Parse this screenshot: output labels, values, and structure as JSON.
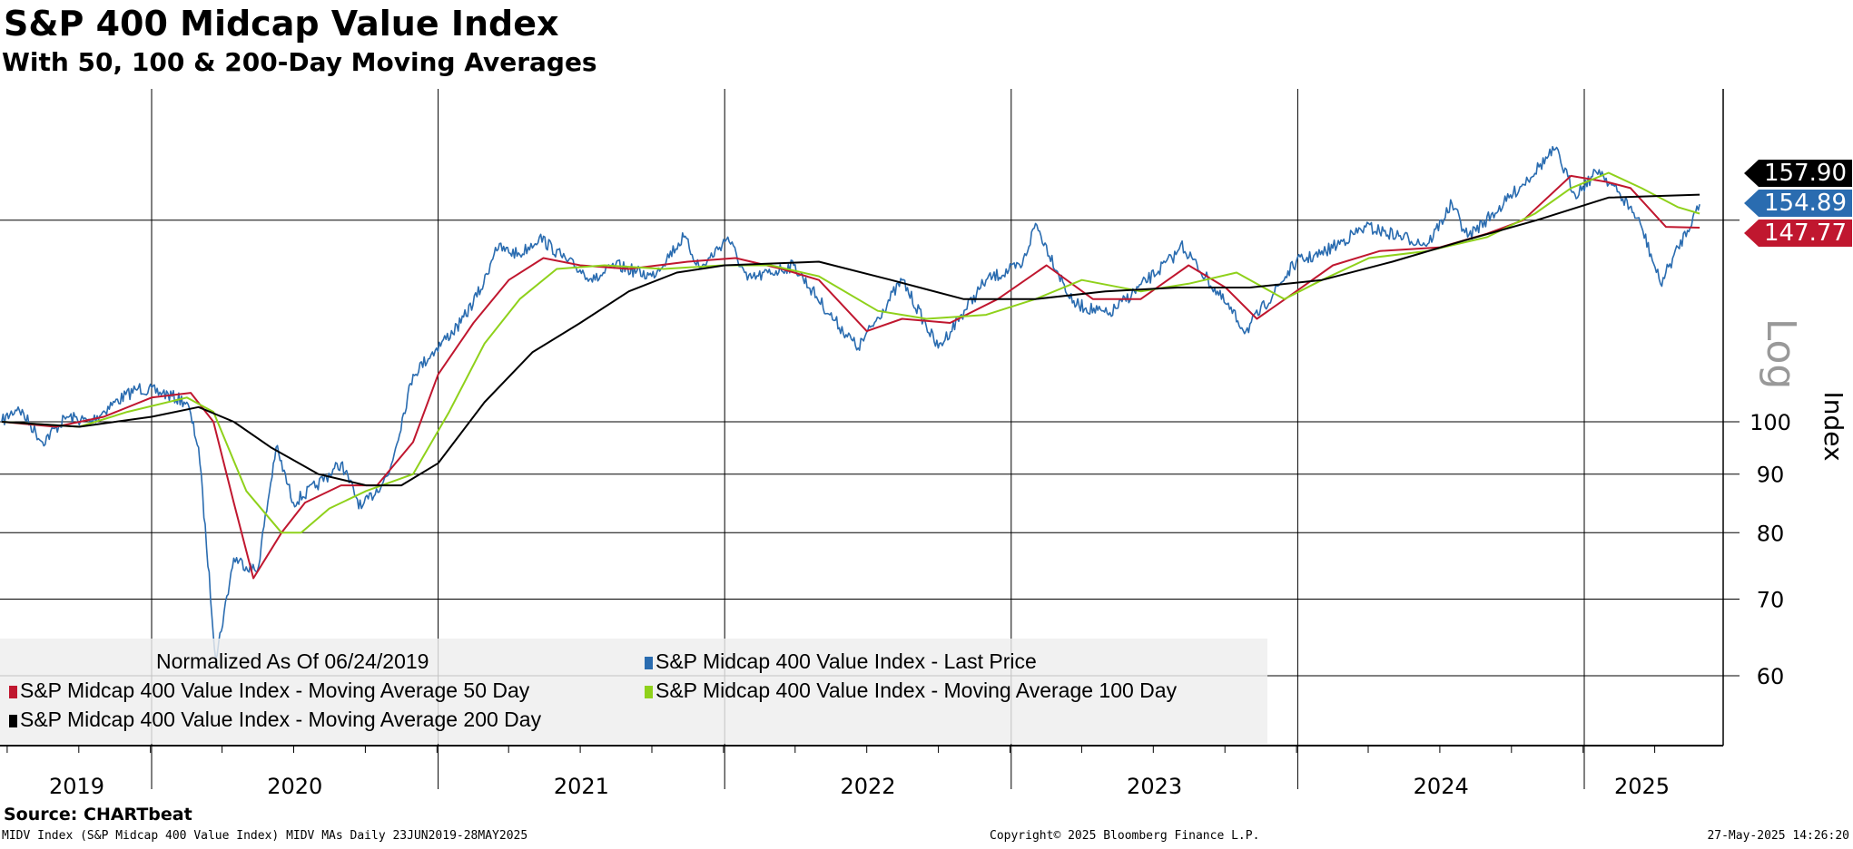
{
  "header": {
    "title": "S&P 400 Midcap Value Index",
    "subtitle": "With 50, 100 & 200-Day Moving Averages"
  },
  "footer": {
    "source": "Source: CHARTbeat",
    "description": "MIDV Index (S&P Midcap 400 Value Index) MIDV MAs  Daily 23JUN2019-28MAY2025",
    "copyright": "Copyright© 2025 Bloomberg Finance L.P.",
    "timestamp": "27-May-2025 14:26:20"
  },
  "chart_data": {
    "type": "line",
    "title": "S&P 400 Midcap Value Index",
    "ylabel": "Index",
    "yscale_label": "Log",
    "yscale": "log",
    "ylim": [
      53,
      190
    ],
    "xlim": [
      "2019-06-24",
      "2025-05-28"
    ],
    "y_ticks": [
      60,
      70,
      80,
      90,
      100,
      150
    ],
    "y_tick_labels": [
      "60",
      "70",
      "80",
      "90",
      "100",
      ""
    ],
    "x_tick_labels": [
      "2019",
      "2020",
      "2021",
      "2022",
      "2023",
      "2024",
      "2025"
    ],
    "grid": true,
    "legend_position": "bottom-left",
    "legend_note": "Normalized As Of 06/24/2019",
    "last_value_labels": [
      {
        "series": "MA200",
        "text": "157.90",
        "color": "#000000"
      },
      {
        "series": "Last Price",
        "text": "154.89",
        "color": "#2a6cb0"
      },
      {
        "series": "MA50",
        "text": "147.77",
        "color": "#c0172f"
      }
    ],
    "series": [
      {
        "name": "S&P Midcap 400 Value Index - Last Price",
        "color": "#2a6cb0",
        "points": [
          [
            "2019-06-24",
            100
          ],
          [
            "2019-07-15",
            103
          ],
          [
            "2019-08-15",
            96
          ],
          [
            "2019-09-15",
            101
          ],
          [
            "2019-10-15",
            100
          ],
          [
            "2019-11-15",
            104
          ],
          [
            "2019-12-15",
            107
          ],
          [
            "2020-01-15",
            106
          ],
          [
            "2020-02-15",
            104
          ],
          [
            "2020-03-01",
            95
          ],
          [
            "2020-03-23",
            62
          ],
          [
            "2020-04-15",
            76
          ],
          [
            "2020-05-15",
            74
          ],
          [
            "2020-06-08",
            95
          ],
          [
            "2020-06-30",
            85
          ],
          [
            "2020-07-30",
            88
          ],
          [
            "2020-08-30",
            92
          ],
          [
            "2020-09-25",
            84
          ],
          [
            "2020-10-30",
            90
          ],
          [
            "2020-11-30",
            110
          ],
          [
            "2020-12-30",
            116
          ],
          [
            "2021-01-30",
            122
          ],
          [
            "2021-02-28",
            132
          ],
          [
            "2021-03-15",
            142
          ],
          [
            "2021-04-15",
            140
          ],
          [
            "2021-05-10",
            145
          ],
          [
            "2021-06-15",
            138
          ],
          [
            "2021-07-20",
            133
          ],
          [
            "2021-08-15",
            137
          ],
          [
            "2021-09-30",
            134
          ],
          [
            "2021-11-10",
            145
          ],
          [
            "2021-12-01",
            136
          ],
          [
            "2022-01-05",
            145
          ],
          [
            "2022-01-30",
            133
          ],
          [
            "2022-03-30",
            137
          ],
          [
            "2022-05-15",
            124
          ],
          [
            "2022-06-20",
            116
          ],
          [
            "2022-08-15",
            133
          ],
          [
            "2022-09-30",
            116
          ],
          [
            "2022-11-30",
            133
          ],
          [
            "2023-01-15",
            137
          ],
          [
            "2023-02-01",
            149
          ],
          [
            "2023-03-20",
            127
          ],
          [
            "2023-05-05",
            124
          ],
          [
            "2023-07-30",
            140
          ],
          [
            "2023-08-05",
            143
          ],
          [
            "2023-10-27",
            120
          ],
          [
            "2023-12-30",
            138
          ],
          [
            "2024-01-30",
            140
          ],
          [
            "2024-03-28",
            148
          ],
          [
            "2024-06-15",
            143
          ],
          [
            "2024-07-16",
            155
          ],
          [
            "2024-08-05",
            145
          ],
          [
            "2024-09-20",
            155
          ],
          [
            "2024-11-25",
            173
          ],
          [
            "2024-12-20",
            158
          ],
          [
            "2025-01-20",
            166
          ],
          [
            "2025-02-28",
            154
          ],
          [
            "2025-03-15",
            148
          ],
          [
            "2025-04-08",
            132
          ],
          [
            "2025-05-28",
            154.89
          ]
        ]
      },
      {
        "name": "S&P Midcap 400 Value Index - Moving Average 50 Day",
        "color": "#c0172f",
        "points": [
          [
            "2019-06-24",
            100
          ],
          [
            "2019-09-01",
            99
          ],
          [
            "2019-11-01",
            101
          ],
          [
            "2020-01-01",
            105
          ],
          [
            "2020-02-20",
            106
          ],
          [
            "2020-03-20",
            100
          ],
          [
            "2020-04-15",
            85
          ],
          [
            "2020-05-10",
            73
          ],
          [
            "2020-06-15",
            80
          ],
          [
            "2020-07-15",
            85
          ],
          [
            "2020-08-30",
            88
          ],
          [
            "2020-10-15",
            88
          ],
          [
            "2020-11-30",
            96
          ],
          [
            "2021-01-01",
            110
          ],
          [
            "2021-02-15",
            122
          ],
          [
            "2021-04-01",
            133
          ],
          [
            "2021-05-15",
            139
          ],
          [
            "2021-07-01",
            137
          ],
          [
            "2021-09-01",
            136
          ],
          [
            "2021-11-15",
            138
          ],
          [
            "2022-01-15",
            139
          ],
          [
            "2022-03-15",
            136
          ],
          [
            "2022-05-01",
            133
          ],
          [
            "2022-07-01",
            120
          ],
          [
            "2022-08-15",
            123
          ],
          [
            "2022-10-15",
            122
          ],
          [
            "2022-12-15",
            128
          ],
          [
            "2023-02-15",
            137
          ],
          [
            "2023-04-15",
            128
          ],
          [
            "2023-06-15",
            128
          ],
          [
            "2023-08-15",
            137
          ],
          [
            "2023-10-01",
            131
          ],
          [
            "2023-11-10",
            123
          ],
          [
            "2023-12-30",
            130
          ],
          [
            "2024-02-15",
            137
          ],
          [
            "2024-04-15",
            141
          ],
          [
            "2024-06-30",
            142
          ],
          [
            "2024-08-30",
            146
          ],
          [
            "2024-10-15",
            150
          ],
          [
            "2024-12-15",
            164
          ],
          [
            "2025-01-30",
            162
          ],
          [
            "2025-03-01",
            160
          ],
          [
            "2025-04-15",
            148
          ],
          [
            "2025-05-28",
            147.77
          ]
        ]
      },
      {
        "name": "S&P Midcap 400 Value Index - Moving Average 100 Day",
        "color": "#8fd11b",
        "points": [
          [
            "2019-06-24",
            100
          ],
          [
            "2019-10-01",
            99
          ],
          [
            "2019-12-01",
            102
          ],
          [
            "2020-02-15",
            105
          ],
          [
            "2020-03-20",
            102
          ],
          [
            "2020-05-01",
            87
          ],
          [
            "2020-06-15",
            80
          ],
          [
            "2020-07-10",
            80
          ],
          [
            "2020-08-15",
            84
          ],
          [
            "2020-10-01",
            87
          ],
          [
            "2020-11-30",
            90
          ],
          [
            "2021-01-15",
            102
          ],
          [
            "2021-03-01",
            117
          ],
          [
            "2021-04-15",
            128
          ],
          [
            "2021-06-01",
            136
          ],
          [
            "2021-08-01",
            137
          ],
          [
            "2021-10-15",
            136
          ],
          [
            "2021-12-30",
            137
          ],
          [
            "2022-03-01",
            137
          ],
          [
            "2022-05-01",
            134
          ],
          [
            "2022-07-15",
            125
          ],
          [
            "2022-09-15",
            123
          ],
          [
            "2022-11-30",
            124
          ],
          [
            "2023-02-01",
            128
          ],
          [
            "2023-04-01",
            133
          ],
          [
            "2023-06-15",
            130
          ],
          [
            "2023-08-15",
            132
          ],
          [
            "2023-10-15",
            135
          ],
          [
            "2023-12-15",
            128
          ],
          [
            "2024-02-01",
            133
          ],
          [
            "2024-04-01",
            139
          ],
          [
            "2024-06-15",
            141
          ],
          [
            "2024-08-30",
            145
          ],
          [
            "2024-10-30",
            152
          ],
          [
            "2024-12-15",
            160
          ],
          [
            "2025-02-01",
            165
          ],
          [
            "2025-03-15",
            160
          ],
          [
            "2025-04-30",
            154
          ],
          [
            "2025-05-28",
            152
          ]
        ]
      },
      {
        "name": "S&P Midcap 400 Value Index - Moving Average 200 Day",
        "color": "#000000",
        "points": [
          [
            "2019-06-24",
            100
          ],
          [
            "2019-10-01",
            99
          ],
          [
            "2020-01-01",
            101
          ],
          [
            "2020-03-01",
            103
          ],
          [
            "2020-04-15",
            100
          ],
          [
            "2020-06-01",
            95
          ],
          [
            "2020-08-01",
            90
          ],
          [
            "2020-10-01",
            88
          ],
          [
            "2020-11-15",
            88
          ],
          [
            "2021-01-01",
            92
          ],
          [
            "2021-03-01",
            104
          ],
          [
            "2021-05-01",
            115
          ],
          [
            "2021-07-01",
            122
          ],
          [
            "2021-09-01",
            130
          ],
          [
            "2021-11-01",
            135
          ],
          [
            "2022-01-01",
            137
          ],
          [
            "2022-05-01",
            138
          ],
          [
            "2022-08-01",
            133
          ],
          [
            "2022-11-01",
            128
          ],
          [
            "2023-02-01",
            128
          ],
          [
            "2023-05-01",
            130
          ],
          [
            "2023-08-01",
            131
          ],
          [
            "2023-11-01",
            131
          ],
          [
            "2024-02-01",
            133
          ],
          [
            "2024-05-01",
            138
          ],
          [
            "2024-08-01",
            144
          ],
          [
            "2024-11-01",
            150
          ],
          [
            "2025-02-01",
            157
          ],
          [
            "2025-05-28",
            157.9
          ]
        ]
      }
    ]
  }
}
